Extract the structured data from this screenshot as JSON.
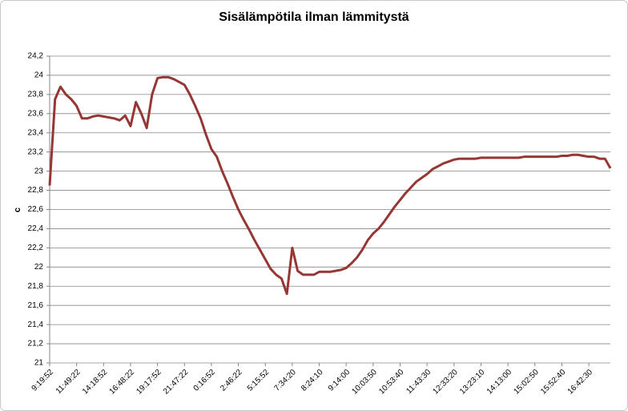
{
  "chart_data": {
    "type": "line",
    "title": "Sisälämpötila ilman lämmitystä",
    "y_label": "c",
    "categories": [
      "9:19:52",
      null,
      null,
      null,
      null,
      "11:49:22",
      null,
      null,
      null,
      null,
      "14:18:52",
      null,
      null,
      null,
      null,
      "16:48:22",
      null,
      null,
      null,
      null,
      "19:17:52",
      null,
      null,
      null,
      null,
      "21:47:22",
      null,
      null,
      null,
      null,
      "0:16:52",
      null,
      null,
      null,
      null,
      "2:46:22",
      null,
      null,
      null,
      null,
      "5:15:52",
      null,
      null,
      null,
      null,
      "7:34:20",
      null,
      null,
      null,
      null,
      "8:24:10",
      null,
      null,
      null,
      null,
      "9:14:00",
      null,
      null,
      null,
      null,
      "10:03:50",
      null,
      null,
      null,
      null,
      "10:53:40",
      null,
      null,
      null,
      null,
      "11:43:30",
      null,
      null,
      null,
      null,
      "12:33:20",
      null,
      null,
      null,
      null,
      "13:23:10",
      null,
      null,
      null,
      null,
      "14:13:00",
      null,
      null,
      null,
      null,
      "15:02:50",
      null,
      null,
      null,
      null,
      "15:52:40",
      null,
      null,
      null,
      null,
      "16:42:30",
      null,
      null,
      null,
      null
    ],
    "series": [
      {
        "name": "c",
        "color": "#953735",
        "values": [
          22.85,
          23.75,
          23.88,
          23.8,
          23.75,
          23.68,
          23.55,
          23.55,
          23.57,
          23.58,
          23.57,
          23.56,
          23.55,
          23.53,
          23.58,
          23.47,
          23.72,
          23.6,
          23.45,
          23.8,
          23.97,
          23.98,
          23.98,
          23.96,
          23.93,
          23.9,
          23.8,
          23.68,
          23.55,
          23.38,
          23.23,
          23.15,
          23.0,
          22.87,
          22.73,
          22.6,
          22.49,
          22.39,
          22.28,
          22.18,
          22.08,
          21.98,
          21.92,
          21.88,
          21.72,
          22.2,
          21.96,
          21.92,
          21.92,
          21.92,
          21.95,
          21.95,
          21.95,
          21.96,
          21.97,
          21.99,
          22.04,
          22.1,
          22.18,
          22.28,
          22.35,
          22.4,
          22.47,
          22.55,
          22.63,
          22.7,
          22.77,
          22.83,
          22.89,
          22.93,
          22.97,
          23.02,
          23.05,
          23.08,
          23.1,
          23.12,
          23.13,
          23.13,
          23.13,
          23.13,
          23.14,
          23.14,
          23.14,
          23.14,
          23.14,
          23.14,
          23.14,
          23.14,
          23.15,
          23.15,
          23.15,
          23.15,
          23.15,
          23.15,
          23.15,
          23.16,
          23.16,
          23.17,
          23.17,
          23.16,
          23.15,
          23.15,
          23.13,
          23.13,
          23.03
        ]
      }
    ],
    "ylim": [
      21,
      24.2
    ],
    "yticks": [
      21,
      {
        "value": 21.2,
        "label": "21,2"
      },
      {
        "value": 21.4,
        "label": "21,4"
      },
      {
        "value": 21.6,
        "label": "21,6"
      },
      {
        "value": 21.8,
        "label": "21,8"
      },
      22,
      {
        "value": 22.2,
        "label": "22,2"
      },
      {
        "value": 22.4,
        "label": "22,4"
      },
      {
        "value": 22.6,
        "label": "22,6"
      },
      {
        "value": 22.8,
        "label": "22,8"
      },
      23,
      {
        "value": 23.2,
        "label": "23,2"
      },
      {
        "value": 23.4,
        "label": "23,4"
      },
      {
        "value": 23.6,
        "label": "23,6"
      },
      {
        "value": 23.8,
        "label": "23,8"
      },
      24,
      {
        "value": 24.2,
        "label": "24,2"
      }
    ],
    "grid": true
  }
}
